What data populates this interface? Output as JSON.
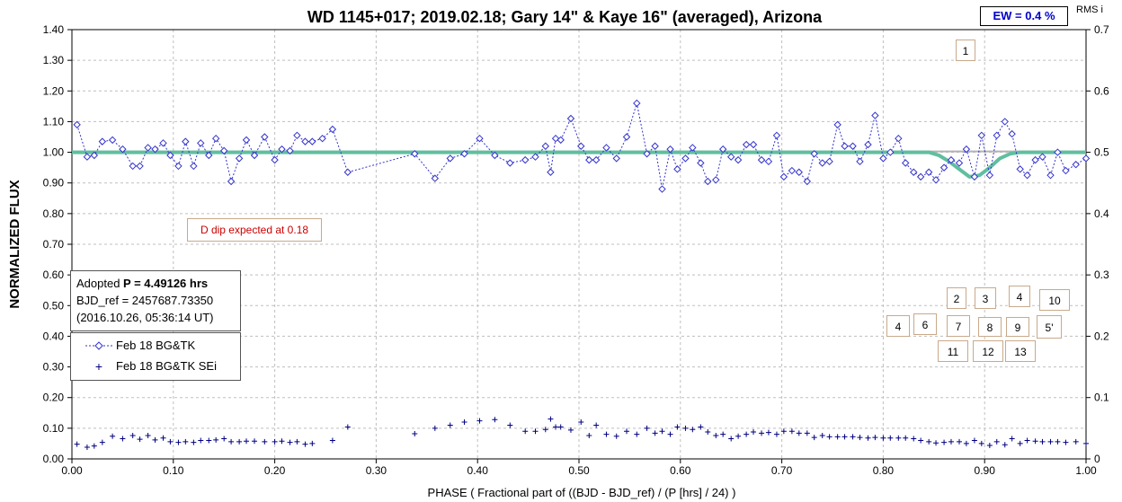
{
  "chart_data": {
    "type": "scatter",
    "title": "WD 1145+017; 2019.02.18; Gary 14\" & Kaye 16\" (averaged), Arizona",
    "xlabel": "PHASE ( Fractional part of ((BJD - BJD_ref) / (P [hrs] / 24) )",
    "ylabel": "NORMALIZED FLUX",
    "xlim": [
      0.0,
      1.0
    ],
    "ylim": [
      0.0,
      1.4
    ],
    "y2lim": [
      0.0,
      0.7
    ],
    "x_ticks": [
      "0.00",
      "0.10",
      "0.20",
      "0.30",
      "0.40",
      "0.50",
      "0.60",
      "0.70",
      "0.80",
      "0.90",
      "1.00"
    ],
    "y_ticks": [
      "0.00",
      "0.10",
      "0.20",
      "0.30",
      "0.40",
      "0.50",
      "0.60",
      "0.70",
      "0.80",
      "0.90",
      "1.00",
      "1.10",
      "1.20",
      "1.30",
      "1.40"
    ],
    "y2_ticks": [
      "0",
      "0.1",
      "0.2",
      "0.3",
      "0.4",
      "0.5",
      "0.6",
      "0.7"
    ],
    "grid": true,
    "legend_position": "left-middle",
    "series": [
      {
        "name": "Feb 18 BG&TK",
        "color": "#3333cc",
        "x": [
          0.005,
          0.015,
          0.022,
          0.03,
          0.04,
          0.05,
          0.06,
          0.067,
          0.075,
          0.082,
          0.09,
          0.097,
          0.105,
          0.112,
          0.12,
          0.127,
          0.135,
          0.142,
          0.15,
          0.157,
          0.165,
          0.172,
          0.18,
          0.19,
          0.2,
          0.207,
          0.215,
          0.222,
          0.23,
          0.237,
          0.247,
          0.257,
          0.272,
          0.338,
          0.358,
          0.373,
          0.387,
          0.402,
          0.417,
          0.432,
          0.447,
          0.457,
          0.467,
          0.472,
          0.477,
          0.482,
          0.492,
          0.502,
          0.51,
          0.517,
          0.527,
          0.537,
          0.547,
          0.557,
          0.567,
          0.575,
          0.582,
          0.59,
          0.597,
          0.605,
          0.612,
          0.62,
          0.627,
          0.635,
          0.642,
          0.65,
          0.657,
          0.665,
          0.672,
          0.68,
          0.687,
          0.695,
          0.702,
          0.71,
          0.717,
          0.725,
          0.732,
          0.74,
          0.747,
          0.755,
          0.762,
          0.77,
          0.777,
          0.785,
          0.792,
          0.8,
          0.807,
          0.815,
          0.822,
          0.83,
          0.837,
          0.845,
          0.852,
          0.86,
          0.867,
          0.875,
          0.882,
          0.89,
          0.897,
          0.905,
          0.912,
          0.92,
          0.927,
          0.935,
          0.942,
          0.95,
          0.957,
          0.965,
          0.972,
          0.98,
          0.99,
          1.0
        ],
        "y": [
          1.09,
          0.985,
          0.99,
          1.035,
          1.04,
          1.01,
          0.955,
          0.955,
          1.015,
          1.01,
          1.03,
          0.99,
          0.955,
          1.035,
          0.955,
          1.03,
          0.99,
          1.045,
          1.005,
          0.905,
          0.98,
          1.04,
          0.99,
          1.05,
          0.975,
          1.01,
          1.005,
          1.055,
          1.035,
          1.035,
          1.045,
          1.075,
          0.935,
          0.995,
          0.915,
          0.98,
          0.995,
          1.045,
          0.99,
          0.965,
          0.975,
          0.985,
          1.02,
          0.935,
          1.045,
          1.04,
          1.11,
          1.02,
          0.975,
          0.975,
          1.015,
          0.98,
          1.05,
          1.16,
          0.995,
          1.02,
          0.88,
          1.01,
          0.945,
          0.98,
          1.015,
          0.965,
          0.905,
          0.91,
          1.01,
          0.985,
          0.975,
          1.025,
          1.025,
          0.975,
          0.97,
          1.055,
          0.92,
          0.94,
          0.935,
          0.905,
          0.995,
          0.965,
          0.97,
          1.09,
          1.02,
          1.02,
          0.97,
          1.025,
          1.12,
          0.98,
          1.0,
          1.045,
          0.965,
          0.935,
          0.92,
          0.935,
          0.91,
          0.95,
          0.975,
          0.965,
          1.01,
          0.92,
          1.055,
          0.925,
          1.055,
          1.1,
          1.06,
          0.945,
          0.925,
          0.975,
          0.985,
          0.925,
          1.0,
          0.94,
          0.96,
          0.98
        ]
      },
      {
        "name": "Feb 18 BG&TK SEi",
        "color": "#000080",
        "axis": "right",
        "x": [
          0.005,
          0.015,
          0.022,
          0.03,
          0.04,
          0.05,
          0.06,
          0.067,
          0.075,
          0.082,
          0.09,
          0.097,
          0.105,
          0.112,
          0.12,
          0.127,
          0.135,
          0.142,
          0.15,
          0.157,
          0.165,
          0.172,
          0.18,
          0.19,
          0.2,
          0.207,
          0.215,
          0.222,
          0.23,
          0.237,
          0.257,
          0.272,
          0.338,
          0.358,
          0.373,
          0.387,
          0.402,
          0.417,
          0.432,
          0.447,
          0.457,
          0.467,
          0.472,
          0.477,
          0.482,
          0.492,
          0.502,
          0.51,
          0.517,
          0.527,
          0.537,
          0.547,
          0.557,
          0.567,
          0.575,
          0.582,
          0.59,
          0.597,
          0.605,
          0.612,
          0.62,
          0.627,
          0.635,
          0.642,
          0.65,
          0.657,
          0.665,
          0.672,
          0.68,
          0.687,
          0.695,
          0.702,
          0.71,
          0.717,
          0.725,
          0.732,
          0.74,
          0.747,
          0.755,
          0.762,
          0.77,
          0.777,
          0.785,
          0.792,
          0.8,
          0.807,
          0.815,
          0.822,
          0.83,
          0.837,
          0.845,
          0.852,
          0.86,
          0.867,
          0.875,
          0.882,
          0.89,
          0.897,
          0.905,
          0.912,
          0.92,
          0.927,
          0.935,
          0.942,
          0.95,
          0.957,
          0.965,
          0.972,
          0.98,
          0.99,
          1.0
        ],
        "y": [
          0.024,
          0.019,
          0.021,
          0.027,
          0.037,
          0.033,
          0.038,
          0.032,
          0.038,
          0.031,
          0.034,
          0.028,
          0.027,
          0.028,
          0.027,
          0.03,
          0.03,
          0.031,
          0.033,
          0.028,
          0.028,
          0.029,
          0.029,
          0.028,
          0.028,
          0.029,
          0.027,
          0.028,
          0.024,
          0.025,
          0.03,
          0.052,
          0.041,
          0.05,
          0.055,
          0.06,
          0.062,
          0.064,
          0.055,
          0.045,
          0.045,
          0.048,
          0.065,
          0.052,
          0.052,
          0.047,
          0.06,
          0.038,
          0.055,
          0.04,
          0.037,
          0.045,
          0.04,
          0.05,
          0.042,
          0.045,
          0.04,
          0.052,
          0.05,
          0.048,
          0.052,
          0.044,
          0.038,
          0.04,
          0.033,
          0.037,
          0.04,
          0.044,
          0.042,
          0.043,
          0.04,
          0.045,
          0.045,
          0.042,
          0.042,
          0.035,
          0.038,
          0.036,
          0.036,
          0.036,
          0.036,
          0.035,
          0.034,
          0.035,
          0.034,
          0.034,
          0.034,
          0.034,
          0.033,
          0.03,
          0.028,
          0.026,
          0.027,
          0.028,
          0.028,
          0.025,
          0.03,
          0.025,
          0.022,
          0.028,
          0.023,
          0.033,
          0.025,
          0.03,
          0.029,
          0.028,
          0.028,
          0.028,
          0.027,
          0.028,
          0.025
        ]
      },
      {
        "type": "line",
        "color": "#5fbf9f",
        "x": [
          0.0,
          0.845,
          0.855,
          0.865,
          0.875,
          0.885,
          0.895,
          0.905,
          0.915,
          0.925,
          0.935,
          1.0
        ],
        "y": [
          1.0,
          1.0,
          0.99,
          0.97,
          0.945,
          0.92,
          0.925,
          0.95,
          0.98,
          0.995,
          1.0,
          1.0
        ]
      }
    ],
    "reference_line": {
      "y": 1.0,
      "color": "#b3b3b3"
    }
  },
  "annotations": {
    "ew": "EW =  0.4 %",
    "rms": "RMS i",
    "dip": "D dip expected at 0.18",
    "period_adopted": "Adopted ",
    "period_value": "P = 4.49126 hrs",
    "bjd_ref": "BJD_ref = 2457687.73350",
    "bjd_date": "(2016.10.26, 05:36:14 UT)",
    "legend_1": "Feb 18 BG&TK",
    "legend_2": "Feb 18 BG&TK SEi",
    "legend_plus": "+"
  },
  "dip_labels": [
    "1",
    "2",
    "3",
    "4",
    "10",
    "4",
    "6",
    "7",
    "8",
    "9",
    "5'",
    "11",
    "12",
    "13"
  ]
}
